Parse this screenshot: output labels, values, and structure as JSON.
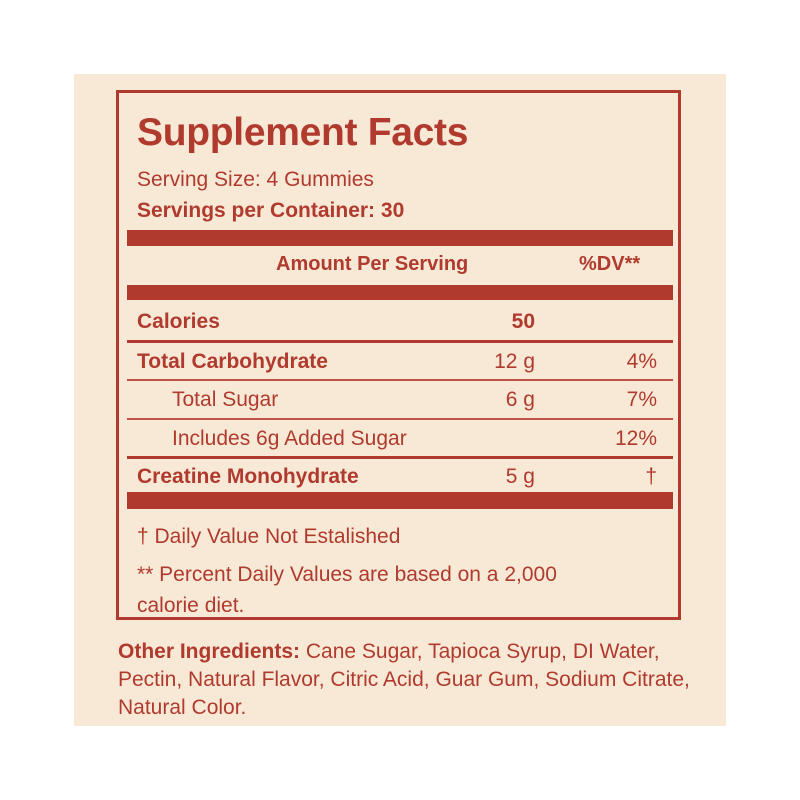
{
  "label": {
    "title": "Supplement Facts",
    "serving_size": "Serving Size: 4 Gummies",
    "servings_per_container": "Servings per Container: 30",
    "header": {
      "amount": "Amount Per Serving",
      "dv": "%DV**"
    },
    "rows": [
      {
        "name": "Calories",
        "amount": "50",
        "dv": ""
      },
      {
        "name": "Total Carbohydrate",
        "amount": "12 g",
        "dv": "4%"
      },
      {
        "name": "Total Sugar",
        "amount": "6 g",
        "dv": "7%"
      },
      {
        "name": "Includes 6g Added Sugar",
        "amount": "",
        "dv": "12%"
      },
      {
        "name": "Creatine Monohydrate",
        "amount": "5 g",
        "dv": "†"
      }
    ],
    "footnote_dagger": "† Daily Value Not Estalished",
    "footnote_dv": "** Percent Daily Values are based on a 2,000 calorie diet."
  },
  "other_ingredients": {
    "label": "Other Ingredients:",
    "text": " Cane Sugar, Tapioca Syrup, DI Water, Pectin, Natural Flavor, Citric Acid, Guar Gum, Sodium Citrate, Natural Color."
  },
  "colors": {
    "accent": "#b03a2e",
    "background": "#f8e9d6"
  }
}
